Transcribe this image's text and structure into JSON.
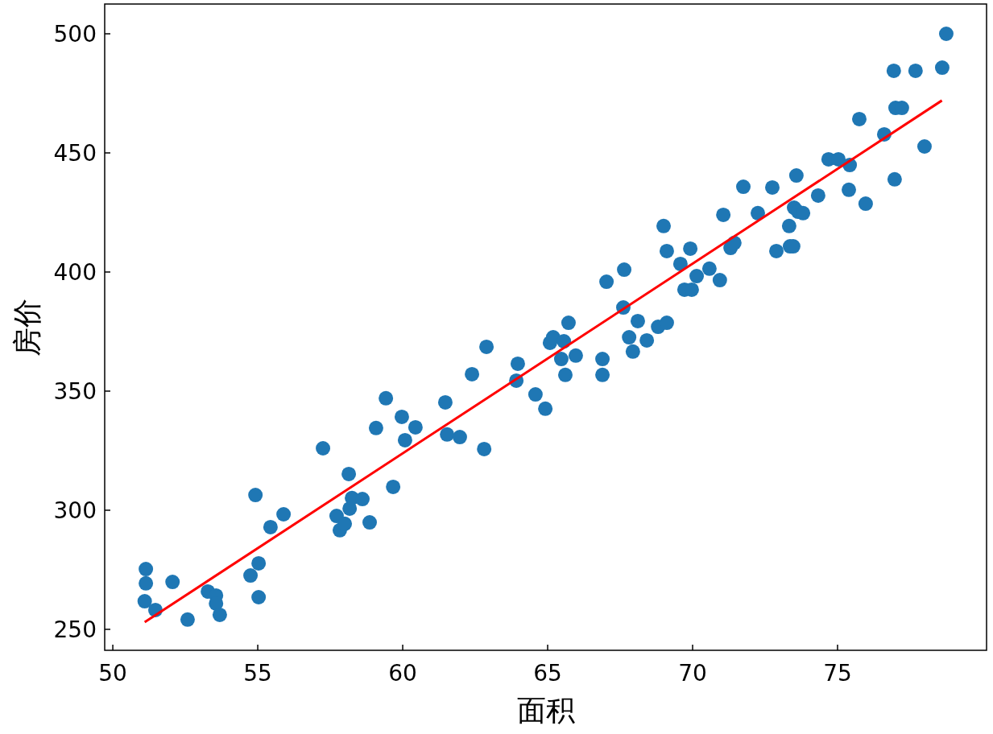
{
  "chart_data": {
    "type": "scatter",
    "xlabel": "面积",
    "ylabel": "房价",
    "xlim": [
      49.72,
      80.14
    ],
    "ylim": [
      241.2,
      512.5
    ],
    "xticks": [
      50,
      55,
      60,
      65,
      70,
      75
    ],
    "yticks": [
      250,
      300,
      350,
      400,
      450,
      500
    ],
    "grid": false,
    "series": [
      {
        "color": "#1f77b4",
        "marker": "circle",
        "x": [
          51.14,
          51.14,
          51.1,
          51.47,
          52.06,
          52.58,
          53.28,
          53.56,
          53.56,
          53.69,
          54.75,
          54.92,
          55.03,
          55.03,
          55.44,
          55.89,
          57.25,
          57.72,
          57.83,
          58.0,
          58.14,
          58.17,
          58.25,
          58.61,
          58.86,
          59.08,
          59.42,
          59.67,
          59.97,
          60.08,
          60.44,
          61.47,
          61.53,
          61.97,
          62.39,
          62.81,
          62.89,
          63.92,
          63.97,
          64.58,
          64.92,
          65.08,
          65.19,
          65.47,
          65.56,
          65.61,
          65.72,
          65.97,
          66.89,
          66.89,
          67.03,
          67.61,
          67.64,
          67.81,
          67.94,
          68.11,
          68.42,
          68.81,
          69.0,
          69.11,
          69.11,
          69.58,
          69.72,
          69.92,
          69.97,
          70.14,
          70.58,
          70.94,
          71.06,
          71.31,
          71.44,
          71.75,
          72.25,
          72.75,
          72.89,
          73.33,
          73.36,
          73.47,
          73.5,
          73.58,
          73.64,
          73.81,
          74.33,
          74.69,
          75.03,
          75.39,
          75.42,
          75.75,
          75.97,
          76.61,
          76.94,
          76.97,
          77.0,
          77.22,
          77.69,
          78.0,
          78.61,
          78.75
        ],
        "values": [
          275.3,
          269.3,
          261.8,
          258.1,
          269.9,
          254.1,
          265.9,
          264.2,
          260.8,
          256.1,
          272.6,
          306.4,
          277.7,
          263.5,
          292.9,
          298.3,
          326.0,
          297.6,
          291.6,
          294.3,
          315.2,
          300.7,
          305.1,
          304.7,
          294.9,
          334.5,
          347.0,
          309.8,
          339.2,
          329.4,
          334.8,
          345.3,
          331.8,
          330.7,
          357.1,
          325.7,
          368.6,
          354.4,
          361.5,
          348.6,
          342.6,
          370.3,
          372.6,
          363.5,
          370.9,
          356.8,
          378.7,
          364.9,
          363.5,
          356.8,
          395.9,
          385.1,
          401.0,
          372.6,
          366.6,
          379.4,
          371.3,
          377.0,
          419.3,
          378.7,
          408.8,
          403.4,
          392.6,
          409.8,
          392.6,
          398.3,
          401.4,
          396.6,
          424.0,
          410.1,
          412.2,
          435.8,
          424.7,
          435.5,
          408.8,
          419.3,
          410.8,
          410.8,
          427.0,
          440.5,
          425.3,
          424.7,
          432.1,
          447.3,
          447.3,
          434.5,
          444.9,
          464.2,
          428.7,
          457.8,
          484.5,
          438.9,
          468.9,
          468.9,
          484.5,
          452.7,
          485.8,
          500.0
        ]
      },
      {
        "type": "line",
        "color": "#ff0000",
        "marker": "none",
        "x": [
          51.1,
          78.6
        ],
        "values": [
          253,
          472
        ]
      }
    ]
  }
}
